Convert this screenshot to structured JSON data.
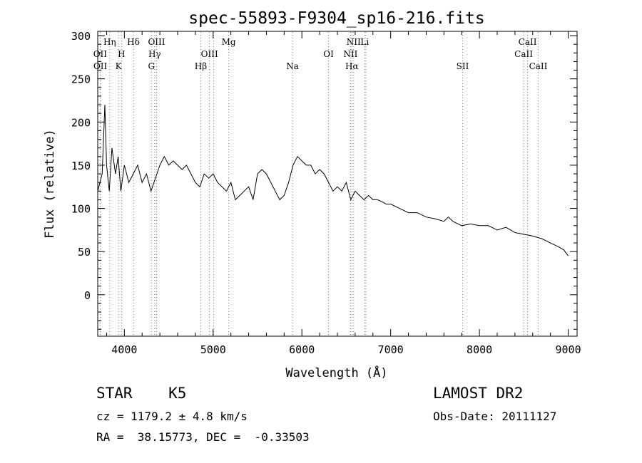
{
  "chart_data": {
    "type": "line",
    "title": "spec-55893-F9304_sp16-216.fits",
    "xlabel": "Wavelength (Å)",
    "ylabel": "Flux (relative)",
    "xlim": [
      3700,
      9100
    ],
    "ylim": [
      -48,
      305
    ],
    "xticks": [
      4000,
      5000,
      6000,
      7000,
      8000,
      9000
    ],
    "yticks": [
      0,
      50,
      100,
      150,
      200,
      250,
      300
    ],
    "grid": false,
    "spectrum": {
      "x": [
        3700,
        3750,
        3780,
        3800,
        3830,
        3860,
        3900,
        3930,
        3960,
        4000,
        4050,
        4100,
        4150,
        4200,
        4250,
        4300,
        4350,
        4400,
        4450,
        4500,
        4550,
        4600,
        4650,
        4700,
        4750,
        4800,
        4850,
        4900,
        4950,
        5000,
        5050,
        5100,
        5150,
        5200,
        5250,
        5300,
        5350,
        5400,
        5450,
        5500,
        5550,
        5600,
        5650,
        5700,
        5750,
        5800,
        5850,
        5900,
        5950,
        6000,
        6050,
        6100,
        6150,
        6200,
        6250,
        6300,
        6350,
        6400,
        6450,
        6500,
        6550,
        6600,
        6650,
        6700,
        6750,
        6800,
        6850,
        6900,
        6950,
        7000,
        7100,
        7200,
        7300,
        7400,
        7500,
        7600,
        7650,
        7700,
        7800,
        7900,
        8000,
        8100,
        8200,
        8300,
        8400,
        8500,
        8600,
        8700,
        8800,
        8900,
        8950,
        9000
      ],
      "y": [
        120,
        140,
        220,
        150,
        120,
        170,
        140,
        160,
        120,
        150,
        130,
        140,
        150,
        130,
        140,
        120,
        135,
        150,
        160,
        150,
        155,
        150,
        145,
        150,
        140,
        130,
        125,
        140,
        135,
        140,
        130,
        125,
        120,
        130,
        110,
        115,
        120,
        125,
        110,
        140,
        145,
        140,
        130,
        120,
        110,
        115,
        130,
        150,
        160,
        155,
        150,
        150,
        140,
        145,
        140,
        130,
        120,
        125,
        120,
        130,
        110,
        120,
        115,
        110,
        115,
        110,
        110,
        108,
        105,
        105,
        100,
        95,
        95,
        90,
        88,
        85,
        90,
        85,
        80,
        82,
        80,
        80,
        75,
        78,
        72,
        70,
        68,
        65,
        60,
        55,
        52,
        45
      ]
    },
    "lines": [
      {
        "label": "OII",
        "x": 3727,
        "row": 1
      },
      {
        "label": "OII",
        "x": 3729,
        "row": 2
      },
      {
        "label": "Hη",
        "x": 3835,
        "row": 0
      },
      {
        "label": "H",
        "x": 3968,
        "row": 1
      },
      {
        "label": "K",
        "x": 3934,
        "row": 2
      },
      {
        "label": "Hδ",
        "x": 4102,
        "row": 0
      },
      {
        "label": "OIII",
        "x": 4363,
        "row": 0
      },
      {
        "label": "Hγ",
        "x": 4341,
        "row": 1
      },
      {
        "label": "G",
        "x": 4305,
        "row": 2
      },
      {
        "label": "Hβ",
        "x": 4861,
        "row": 2
      },
      {
        "label": "OIII",
        "x": 4959,
        "row": 1
      },
      {
        "label": "OIII",
        "x": 5007,
        "row": -1
      },
      {
        "label": "Mg",
        "x": 5175,
        "row": 0
      },
      {
        "label": "Na",
        "x": 5894,
        "row": 2
      },
      {
        "label": "OI",
        "x": 6300,
        "row": 1
      },
      {
        "label": "NII",
        "x": 6548,
        "row": 1
      },
      {
        "label": "Hα",
        "x": 6563,
        "row": 2
      },
      {
        "label": "NII",
        "x": 6583,
        "row": 0
      },
      {
        "label": "Li",
        "x": 6708,
        "row": 0
      },
      {
        "label": "SII",
        "x": 6720,
        "row": -1
      },
      {
        "label": "SII",
        "x": 7810,
        "row": 2
      },
      {
        "label": "CaII",
        "x": 8498,
        "row": 1
      },
      {
        "label": "CaII",
        "x": 8542,
        "row": 0
      },
      {
        "label": "CaII",
        "x": 8662,
        "row": 2
      }
    ]
  },
  "info": {
    "object_class": "STAR    K5",
    "survey": "LAMOST DR2",
    "cz": "cz = 1179.2 ± 4.8 km/s",
    "obs_date": "Obs-Date: 20111127",
    "radec": "RA =  38.15773, DEC =  -0.33503"
  }
}
